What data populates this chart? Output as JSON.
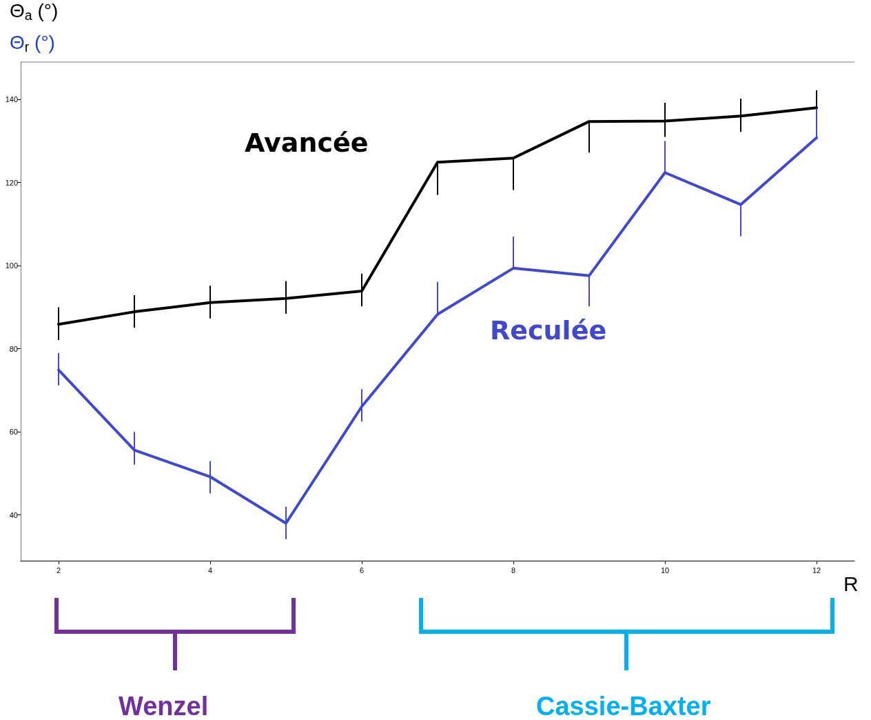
{
  "chart_data": {
    "type": "line",
    "ylabel": "Θ$_{a}$ (°)",
    "xlabel": "R",
    "x": [
      2,
      3,
      4,
      5,
      6,
      7,
      8,
      9,
      10,
      11,
      12
    ],
    "series": [
      {
        "name": "Avancée",
        "color": "#000000",
        "values": [
          85.9,
          88.9,
          91.1,
          92.1,
          93.9,
          124.9,
          125.9,
          134.7,
          134.8,
          136.0,
          138.0
        ],
        "errors": [
          [
            82.1,
            90.0
          ],
          [
            85.1,
            92.9
          ],
          [
            87.3,
            95.2
          ],
          [
            88.4,
            96.3
          ],
          [
            90.2,
            98.1
          ],
          [
            117.0,
            124.9
          ],
          [
            118.2,
            125.9
          ],
          [
            127.2,
            134.7
          ],
          [
            131.0,
            139.2
          ],
          [
            132.2,
            140.2
          ],
          [
            134.2,
            142.2
          ]
        ]
      },
      {
        "name": "Reculée",
        "color": "#4048d0",
        "values": [
          74.9,
          55.6,
          49.2,
          38.0,
          66.1,
          88.3,
          99.4,
          97.6,
          122.4,
          114.7,
          130.8
        ],
        "errors": [
          [
            71.2,
            79.0
          ],
          [
            52.1,
            60.0
          ],
          [
            45.2,
            53.0
          ],
          [
            34.2,
            42.0
          ],
          [
            62.5,
            70.3
          ],
          [
            88.3,
            96.1
          ],
          [
            99.4,
            107.0
          ],
          [
            90.2,
            97.6
          ],
          [
            122.4,
            130.0
          ],
          [
            107.1,
            114.7
          ],
          [
            130.8,
            137.8
          ]
        ]
      }
    ],
    "xlim": [
      1.5,
      12.5
    ],
    "xticks": [
      2,
      4,
      6,
      8,
      10,
      12
    ],
    "ylim": [
      29,
      149
    ],
    "yticks": [
      40,
      60,
      80,
      100,
      120,
      140
    ],
    "grid": false,
    "legend": false,
    "marker": "none",
    "line_style": "solid",
    "annotations": [
      "Θ$_{r}$ (°)",
      "Wenzel",
      "Cassie-Baxter"
    ]
  }
}
